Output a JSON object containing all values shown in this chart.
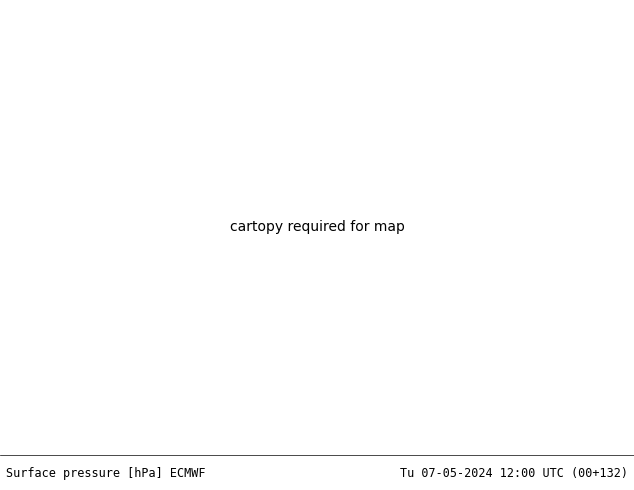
{
  "title_left": "Surface pressure [hPa] ECMWF",
  "title_right": "Tu 07-05-2024 12:00 UTC (00+132)",
  "figsize": [
    6.34,
    4.9
  ],
  "dpi": 100,
  "footer_fontsize": 8.5,
  "footer_bg": "#ffffff",
  "ocean_color": "#b8d4e8",
  "land_colors": {
    "base": "#d4c9a0",
    "green_low": "#c8d4b0",
    "green_mid": "#b8c898",
    "mountain_low": "#c8b080",
    "mountain_high": "#c89868",
    "tibet_red": "#d4786a",
    "india_tan": "#d8c898",
    "desert": "#ddd0a0"
  },
  "contour_lw_black": 1.4,
  "contour_lw_red": 1.3,
  "contour_lw_blue": 1.3,
  "label_fontsize": 6.5
}
